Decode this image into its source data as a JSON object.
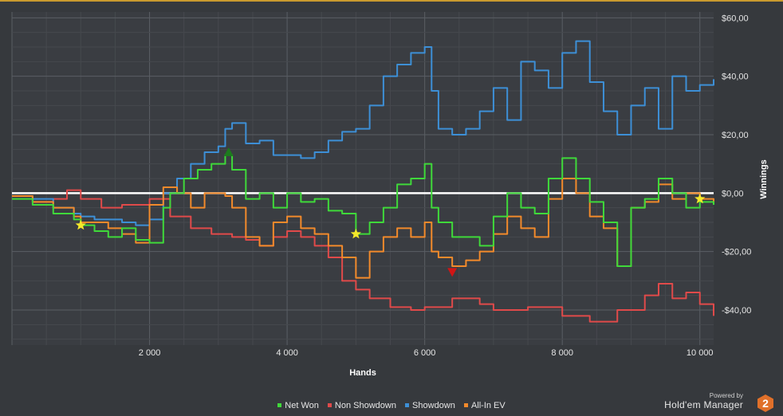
{
  "chart_data": {
    "type": "line",
    "xlabel": "Hands",
    "ylabel": "Winnings",
    "xlim": [
      0,
      10200
    ],
    "ylim": [
      -52,
      62
    ],
    "x_ticks": [
      {
        "value": 2000,
        "label": "2 000"
      },
      {
        "value": 4000,
        "label": "4 000"
      },
      {
        "value": 6000,
        "label": "6 000"
      },
      {
        "value": 8000,
        "label": "8 000"
      },
      {
        "value": 10000,
        "label": "10 000"
      }
    ],
    "y_ticks": [
      {
        "value": 60,
        "label": "$60,00"
      },
      {
        "value": 40,
        "label": "$40,00"
      },
      {
        "value": 20,
        "label": "$20,00"
      },
      {
        "value": 0,
        "label": "$0,00"
      },
      {
        "value": -20,
        "label": "-$20,00"
      },
      {
        "value": -40,
        "label": "-$40,00"
      }
    ],
    "grid": true,
    "zero_line": 0,
    "legend_position": "bottom",
    "series": [
      {
        "name": "Net Won",
        "color": "#3fd93a",
        "x": [
          0,
          300,
          600,
          900,
          1000,
          1200,
          1400,
          1600,
          1800,
          2000,
          2200,
          2300,
          2500,
          2700,
          2900,
          3100,
          3200,
          3400,
          3600,
          3800,
          4000,
          4200,
          4400,
          4600,
          4800,
          5000,
          5200,
          5400,
          5600,
          5800,
          6000,
          6100,
          6200,
          6400,
          6600,
          6800,
          7000,
          7200,
          7400,
          7600,
          7800,
          8000,
          8200,
          8400,
          8600,
          8800,
          9000,
          9200,
          9400,
          9600,
          9800,
          10000,
          10200
        ],
        "y": [
          -2,
          -4,
          -7,
          -9,
          -11,
          -13,
          -15,
          -12,
          -16,
          -17,
          -5,
          0,
          5,
          8,
          10,
          13,
          8,
          -2,
          0,
          -5,
          0,
          -3,
          -2,
          -6,
          -7,
          -14,
          -10,
          -5,
          3,
          5,
          10,
          -5,
          -10,
          -15,
          -15,
          -18,
          -8,
          0,
          -5,
          -7,
          5,
          12,
          5,
          -3,
          -10,
          -25,
          -5,
          -2,
          5,
          0,
          -5,
          -3,
          -4
        ]
      },
      {
        "name": "Non Showdown",
        "color": "#e04a4a",
        "x": [
          0,
          300,
          600,
          800,
          1000,
          1300,
          1600,
          2000,
          2300,
          2600,
          2900,
          3200,
          3400,
          3600,
          3800,
          4000,
          4200,
          4400,
          4600,
          4800,
          5000,
          5200,
          5500,
          5800,
          6000,
          6400,
          6800,
          7000,
          7500,
          8000,
          8400,
          8800,
          9200,
          9400,
          9600,
          9800,
          10000,
          10200
        ],
        "y": [
          -1,
          -3,
          -2,
          1,
          -2,
          -5,
          -4,
          -2,
          -8,
          -12,
          -14,
          -15,
          -16,
          -18,
          -15,
          -13,
          -15,
          -18,
          -22,
          -30,
          -33,
          -36,
          -39,
          -40,
          -39,
          -36,
          -38,
          -40,
          -39,
          -42,
          -44,
          -40,
          -35,
          -31,
          -36,
          -34,
          -38,
          -42
        ]
      },
      {
        "name": "Showdown",
        "color": "#3d8fd6",
        "x": [
          0,
          300,
          600,
          900,
          1000,
          1200,
          1400,
          1600,
          1800,
          2000,
          2200,
          2400,
          2600,
          2800,
          3000,
          3100,
          3200,
          3400,
          3600,
          3800,
          4000,
          4200,
          4400,
          4600,
          4800,
          5000,
          5200,
          5400,
          5600,
          5800,
          6000,
          6100,
          6200,
          6400,
          6600,
          6800,
          7000,
          7200,
          7400,
          7600,
          7800,
          8000,
          8200,
          8400,
          8600,
          8800,
          9000,
          9200,
          9400,
          9600,
          9800,
          10000,
          10200
        ],
        "y": [
          -1,
          -2,
          -5,
          -7,
          -8,
          -9,
          -9,
          -10,
          -11,
          -9,
          0,
          5,
          10,
          14,
          16,
          22,
          24,
          17,
          18,
          13,
          13,
          12,
          14,
          18,
          21,
          22,
          30,
          40,
          44,
          48,
          50,
          35,
          22,
          20,
          22,
          28,
          36,
          25,
          45,
          42,
          36,
          48,
          52,
          38,
          28,
          20,
          30,
          36,
          22,
          40,
          35,
          37,
          39
        ]
      },
      {
        "name": "All-In EV",
        "color": "#f28a2b",
        "x": [
          0,
          300,
          600,
          900,
          1000,
          1200,
          1400,
          1600,
          1800,
          2000,
          2200,
          2400,
          2600,
          2800,
          3000,
          3100,
          3200,
          3400,
          3600,
          3800,
          4000,
          4200,
          4400,
          4600,
          4800,
          5000,
          5200,
          5400,
          5600,
          5800,
          6000,
          6100,
          6200,
          6400,
          6600,
          6800,
          7000,
          7200,
          7400,
          7600,
          7800,
          8000,
          8200,
          8400,
          8600,
          8800,
          9000,
          9200,
          9400,
          9600,
          9800,
          10000,
          10200
        ],
        "y": [
          -1,
          -3,
          -5,
          -8,
          -10,
          -10,
          -12,
          -14,
          -17,
          -4,
          2,
          0,
          -5,
          0,
          0,
          -1,
          -5,
          -15,
          -18,
          -10,
          -8,
          -12,
          -14,
          -18,
          -22,
          -29,
          -20,
          -15,
          -12,
          -15,
          -10,
          -20,
          -22,
          -25,
          -23,
          -20,
          -14,
          -8,
          -12,
          -15,
          -2,
          5,
          0,
          -8,
          -12,
          -25,
          -5,
          -3,
          3,
          -2,
          0,
          -2,
          -3
        ]
      }
    ],
    "markers": [
      {
        "type": "star",
        "x": 1000,
        "y": -11,
        "color": "#f4e82a"
      },
      {
        "type": "star",
        "x": 5000,
        "y": -14,
        "color": "#f4e82a"
      },
      {
        "type": "star",
        "x": 10000,
        "y": -2,
        "color": "#f4e82a"
      },
      {
        "type": "triangle-up",
        "x": 3150,
        "y": 14,
        "color": "#1d7a1d"
      },
      {
        "type": "triangle-down",
        "x": 6400,
        "y": -27,
        "color": "#d11515"
      }
    ]
  },
  "legend": {
    "items": [
      {
        "label": "Net Won",
        "color": "#3fd93a"
      },
      {
        "label": "Non Showdown",
        "color": "#e04a4a"
      },
      {
        "label": "Showdown",
        "color": "#3d8fd6"
      },
      {
        "label": "All-In EV",
        "color": "#f28a2b"
      }
    ]
  },
  "branding": {
    "powered_by": "Powered by",
    "name": "Hold'em Manager",
    "badge": "2",
    "badge_color": "#e0702a"
  }
}
